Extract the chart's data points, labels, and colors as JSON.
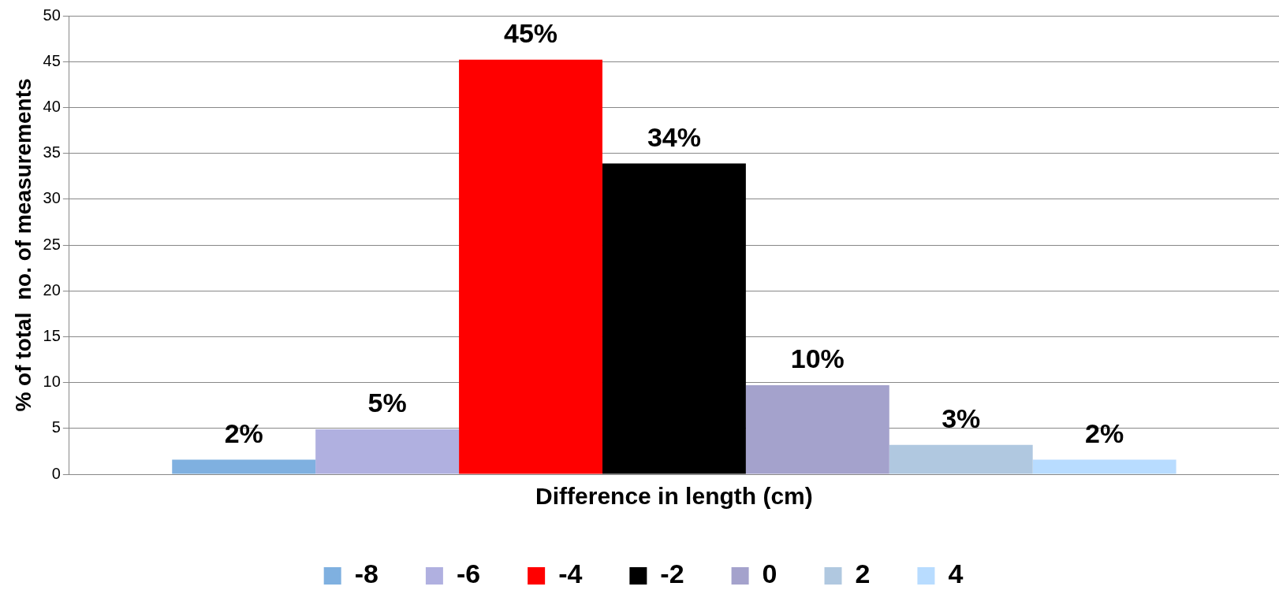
{
  "chart_data": {
    "type": "bar",
    "xlabel": "Difference in length (cm)",
    "ylabel": "% of total  no. of measurements",
    "categories": [
      null
    ],
    "series": [
      {
        "name": "-8",
        "color": "#7fb0e0",
        "values": [
          1.6
        ],
        "value_labels": [
          "2%"
        ]
      },
      {
        "name": "-6",
        "color": "#b0b0e0",
        "values": [
          4.9
        ],
        "value_labels": [
          "5%"
        ]
      },
      {
        "name": "-4",
        "color": "#ff0000",
        "values": [
          45.2
        ],
        "value_labels": [
          "45%"
        ]
      },
      {
        "name": "-2",
        "color": "#000000",
        "values": [
          33.9
        ],
        "value_labels": [
          "34%"
        ]
      },
      {
        "name": "0",
        "color": "#a4a2cc",
        "values": [
          9.7
        ],
        "value_labels": [
          "10%"
        ]
      },
      {
        "name": "2",
        "color": "#b0c8e0",
        "values": [
          3.2
        ],
        "value_labels": [
          "3%"
        ]
      },
      {
        "name": "4",
        "color": "#b8dcff",
        "values": [
          1.6
        ],
        "value_labels": [
          "2%"
        ]
      }
    ],
    "ylim": [
      0,
      50
    ],
    "yticks": [
      0,
      5,
      10,
      15,
      20,
      25,
      30,
      35,
      40,
      45,
      50
    ],
    "grid": "y",
    "legend": "bottom",
    "tick_labels": "y"
  }
}
